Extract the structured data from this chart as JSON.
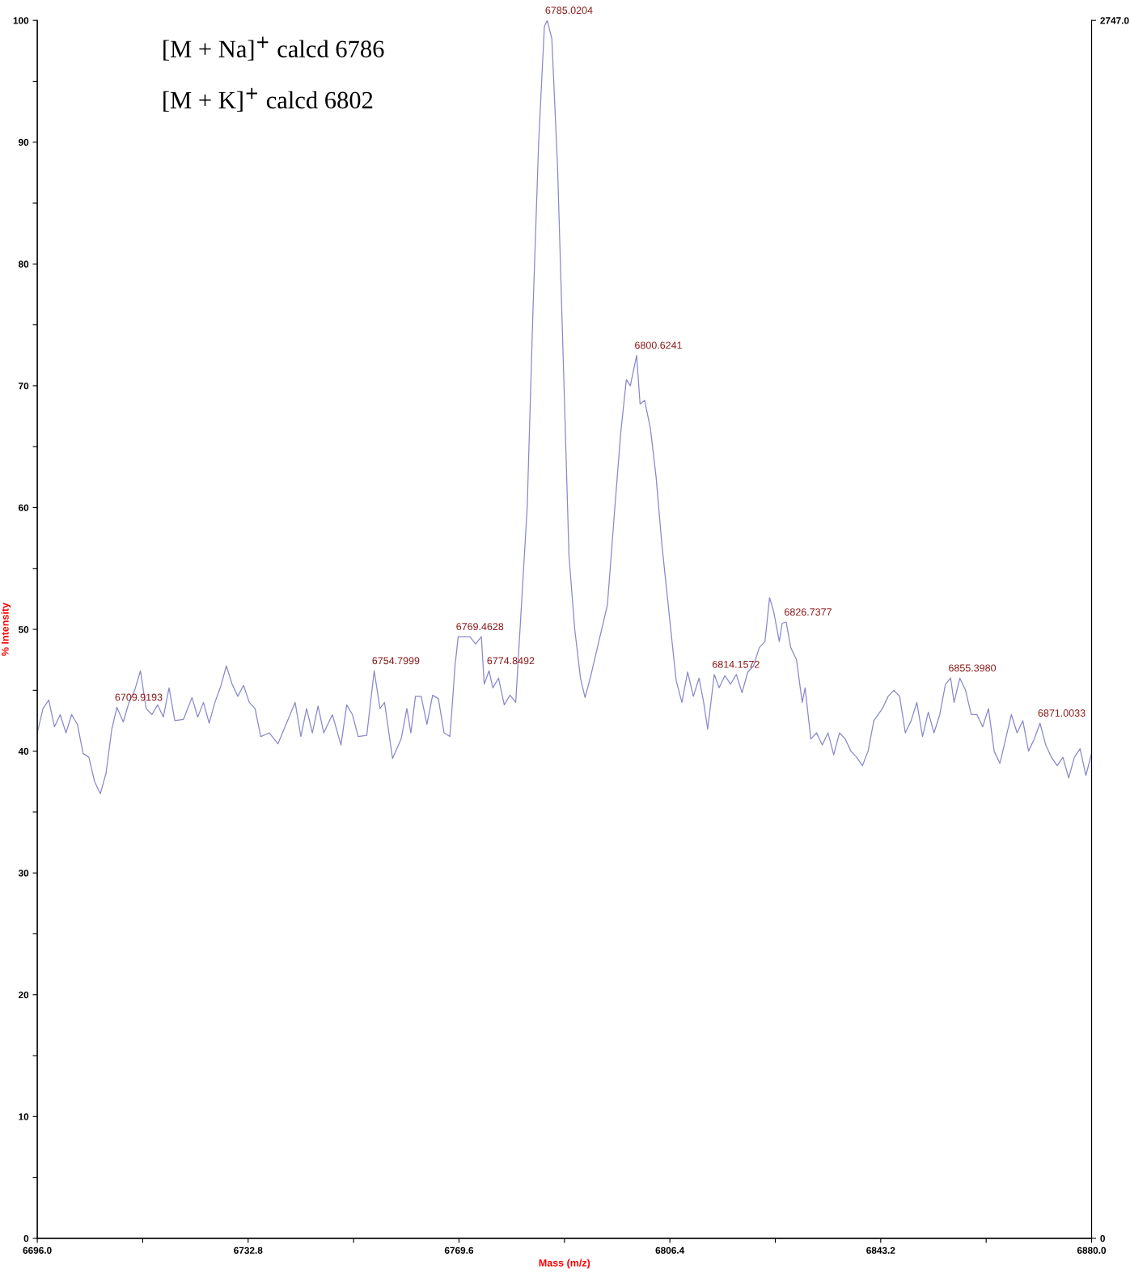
{
  "chart_data": {
    "type": "line",
    "xlabel": "Mass (m/z)",
    "ylabel": "% Intensity",
    "xlim": [
      6696.0,
      6880.0
    ],
    "xticks": [
      {
        "value": 6696.0,
        "label": "6696.0"
      },
      {
        "value": 6714.4,
        "label": null
      },
      {
        "value": 6732.8,
        "label": "6732.8"
      },
      {
        "value": 6751.2,
        "label": null
      },
      {
        "value": 6769.6,
        "label": "6769.6"
      },
      {
        "value": 6788.0,
        "label": null
      },
      {
        "value": 6806.4,
        "label": "6806.4"
      },
      {
        "value": 6824.8,
        "label": null
      },
      {
        "value": 6843.2,
        "label": "6843.2"
      },
      {
        "value": 6861.6,
        "label": null
      },
      {
        "value": 6880.0,
        "label": "6880.0"
      }
    ],
    "ylim": [
      0,
      100
    ],
    "yticks": [
      0,
      {
        "value": 5,
        "label": null
      },
      10,
      {
        "value": 15,
        "label": null
      },
      20,
      {
        "value": 25,
        "label": null
      },
      30,
      {
        "value": 35,
        "label": null
      },
      40,
      {
        "value": 45,
        "label": null
      },
      50,
      {
        "value": 55,
        "label": null
      },
      60,
      {
        "value": 65,
        "label": null
      },
      70,
      {
        "value": 75,
        "label": null
      },
      80,
      {
        "value": 85,
        "label": null
      },
      90,
      {
        "value": 95,
        "label": null
      },
      100
    ],
    "y2lim": [
      0,
      2747.0
    ],
    "y2ticks": [
      0,
      {
        "value": 2747.0,
        "label": "2747.0"
      }
    ],
    "grid": false,
    "marker": "none",
    "line_style": "solid",
    "series": [
      {
        "color": "#8888cc",
        "x": [
          6696.0,
          6697.0,
          6698.0,
          6699.0,
          6700.0,
          6701.0,
          6702.0,
          6703.0,
          6704.0,
          6705.0,
          6706.0,
          6707.0,
          6708.0,
          6709.0,
          6709.9,
          6711.0,
          6712.0,
          6713.0,
          6714.0,
          6715.0,
          6716.0,
          6717.0,
          6718.0,
          6719.0,
          6720.0,
          6721.5,
          6723.0,
          6724.0,
          6725.0,
          6726.0,
          6727.0,
          6728.0,
          6729.0,
          6730.0,
          6731.0,
          6732.0,
          6733.0,
          6734.0,
          6735.0,
          6736.5,
          6738.0,
          6739.5,
          6741.0,
          6742.0,
          6743.0,
          6744.0,
          6745.0,
          6746.0,
          6747.5,
          6749.0,
          6750.0,
          6751.0,
          6752.0,
          6753.5,
          6754.8,
          6755.8,
          6756.6,
          6758.0,
          6759.5,
          6760.5,
          6761.2,
          6762.0,
          6763.0,
          6764.0,
          6765.0,
          6766.0,
          6767.0,
          6768.0,
          6768.3,
          6768.9,
          6769.4628,
          6771.5,
          6772.5,
          6773.5,
          6774.0,
          6774.85,
          6775.5,
          6776.5,
          6777.5,
          6778.5,
          6779.5,
          6780.5,
          6781.5,
          6782.5,
          6783.5,
          6784.5,
          6785.0,
          6785.8,
          6786.8,
          6787.8,
          6788.8,
          6789.8,
          6790.8,
          6791.6,
          6792.5,
          6794.0,
          6795.5,
          6796.8,
          6797.8,
          6798.8,
          6799.5,
          6800.6,
          6801.2,
          6802.0,
          6803.0,
          6804.0,
          6805.0,
          6806.0,
          6807.0,
          6807.5,
          6808.5,
          6809.5,
          6810.5,
          6811.5,
          6812.3,
          6813.0,
          6814.15,
          6815.0,
          6816.0,
          6817.0,
          6818.0,
          6819.0,
          6820.0,
          6821.0,
          6822.0,
          6823.0,
          6823.8,
          6824.5,
          6825.5,
          6826.0,
          6826.7,
          6827.5,
          6828.5,
          6829.5,
          6830.0,
          6831.0,
          6832.0,
          6833.0,
          6834.0,
          6835.0,
          6836.0,
          6837.0,
          6838.0,
          6839.0,
          6840.0,
          6841.0,
          6842.0,
          6843.5,
          6844.5,
          6845.5,
          6846.5,
          6847.5,
          6848.5,
          6849.5,
          6850.5,
          6851.5,
          6852.5,
          6853.5,
          6854.5,
          6855.4,
          6856.0,
          6857.0,
          6858.0,
          6859.0,
          6860.0,
          6861.0,
          6862.0,
          6863.0,
          6864.0,
          6865.0,
          6866.0,
          6867.0,
          6868.0,
          6869.0,
          6870.0,
          6871.0,
          6872.0,
          6873.0,
          6874.0,
          6875.0,
          6876.0,
          6877.0,
          6878.0,
          6879.0,
          6880.0
        ],
        "values": [
          41.5,
          43.5,
          44.2,
          42.0,
          43.0,
          41.5,
          43.0,
          42.2,
          39.8,
          39.5,
          37.5,
          36.5,
          38.2,
          41.8,
          43.6,
          42.4,
          44.0,
          45.0,
          46.6,
          43.5,
          43.0,
          43.8,
          42.8,
          45.2,
          42.5,
          42.6,
          44.4,
          42.8,
          44.0,
          42.3,
          44.0,
          45.3,
          47.0,
          45.5,
          44.5,
          45.4,
          44.0,
          43.5,
          41.2,
          41.5,
          40.6,
          42.3,
          44.0,
          41.2,
          43.5,
          41.5,
          43.7,
          41.5,
          43.0,
          40.5,
          43.8,
          43.0,
          41.2,
          41.3,
          46.6,
          43.5,
          44.0,
          39.4,
          41.0,
          43.5,
          41.5,
          44.5,
          44.5,
          42.2,
          44.6,
          44.3,
          41.5,
          41.2,
          43.0,
          47.0,
          49.4,
          49.4,
          48.8,
          49.4,
          45.5,
          46.6,
          45.2,
          46.0,
          43.8,
          44.6,
          44.0,
          52.0,
          60.0,
          76.0,
          90.0,
          99.5,
          100,
          98.5,
          88.0,
          72.0,
          56.0,
          50.0,
          46.0,
          44.4,
          46.0,
          49.0,
          52.0,
          60.0,
          66.0,
          70.5,
          70.0,
          72.5,
          68.5,
          68.8,
          66.5,
          62.5,
          57.0,
          52.5,
          48.0,
          45.8,
          44.0,
          46.5,
          44.5,
          46.0,
          44.0,
          41.8,
          46.3,
          45.2,
          46.2,
          45.5,
          46.3,
          44.8,
          46.5,
          47.0,
          48.5,
          49.0,
          52.6,
          51.5,
          49.0,
          50.5,
          50.6,
          48.5,
          47.5,
          44.0,
          45.2,
          41.0,
          41.5,
          40.5,
          41.5,
          39.7,
          41.5,
          41.0,
          40.0,
          39.5,
          38.8,
          40.0,
          42.5,
          43.5,
          44.5,
          45.0,
          44.5,
          41.5,
          42.5,
          44.0,
          41.2,
          43.2,
          41.5,
          43.0,
          45.5,
          46.0,
          44.0,
          46.0,
          45.0,
          43.0,
          43.0,
          42.0,
          43.5,
          40.0,
          39.0,
          41.0,
          43.0,
          41.5,
          42.5,
          40.0,
          41.0,
          42.3,
          40.5,
          39.5,
          38.8,
          39.5,
          37.8,
          39.5,
          40.2,
          38.0,
          39.8
        ]
      }
    ],
    "annotations": [
      "[M + Na]$^{+}$ calcd 6786",
      "[M + K]$^{+}$ calcd 6802",
      {
        "text": "6709.9193",
        "x": 6709.9193,
        "y": 43.6
      },
      {
        "text": "6754.7999",
        "x": 6754.7999,
        "y": 46.6
      },
      {
        "text": "6769.4628",
        "x": 6769.4628,
        "y": 49.4
      },
      {
        "text": "6774.8492",
        "x": 6774.8492,
        "y": 46.6
      },
      {
        "text": "6785.0204",
        "x": 6785.0204,
        "y": 100
      },
      {
        "text": "6800.6241",
        "x": 6800.6241,
        "y": 72.5
      },
      {
        "text": "6814.1572",
        "x": 6814.1572,
        "y": 46.3
      },
      {
        "text": "6826.7377",
        "x": 6826.7377,
        "y": 50.6
      },
      {
        "text": "6855.3980",
        "x": 6855.398,
        "y": 46.0
      },
      {
        "text": "6871.0033",
        "x": 6871.0033,
        "y": 42.3
      }
    ]
  }
}
